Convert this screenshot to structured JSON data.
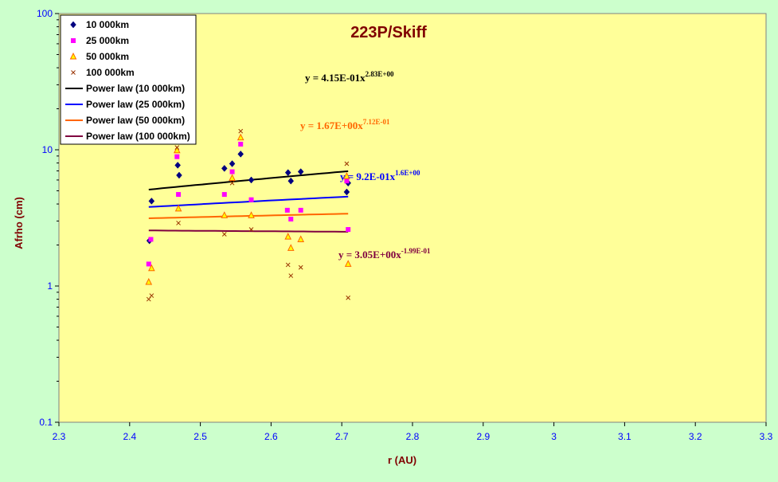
{
  "chart_data": {
    "type": "scatter",
    "title": "223P/Skiff",
    "xlabel": "r (AU)",
    "ylabel": "Afrho (cm)",
    "xlim": [
      2.3,
      3.3
    ],
    "ylim": [
      0.1,
      100
    ],
    "yscale": "log",
    "x_ticks": [
      "2.3",
      "2.4",
      "2.5",
      "2.6",
      "2.7",
      "2.8",
      "2.9",
      "3",
      "3.1",
      "3.2",
      "3.3"
    ],
    "y_ticks": [
      "0.1",
      "1",
      "10",
      "100"
    ],
    "grid": false,
    "legend_position": "top-left",
    "series": [
      {
        "name": "10 000km",
        "marker": "diamond",
        "color": "#000080",
        "points": [
          [
            2.428,
            2.15
          ],
          [
            2.431,
            4.2
          ],
          [
            2.468,
            7.7
          ],
          [
            2.47,
            6.5
          ],
          [
            2.534,
            7.3
          ],
          [
            2.545,
            7.9
          ],
          [
            2.557,
            9.3
          ],
          [
            2.572,
            6.0
          ],
          [
            2.624,
            6.8
          ],
          [
            2.628,
            5.9
          ],
          [
            2.642,
            6.9
          ],
          [
            2.707,
            4.9
          ],
          [
            2.709,
            5.7
          ]
        ]
      },
      {
        "name": "25 000km",
        "marker": "square",
        "color": "#ff00ff",
        "points": [
          [
            2.427,
            1.45
          ],
          [
            2.43,
            2.2
          ],
          [
            2.467,
            8.9
          ],
          [
            2.469,
            4.7
          ],
          [
            2.534,
            4.7
          ],
          [
            2.545,
            6.9
          ],
          [
            2.557,
            11.0
          ],
          [
            2.572,
            4.3
          ],
          [
            2.623,
            3.6
          ],
          [
            2.628,
            3.1
          ],
          [
            2.642,
            3.6
          ],
          [
            2.707,
            5.9
          ],
          [
            2.709,
            2.6
          ]
        ]
      },
      {
        "name": "50 000km",
        "marker": "triangle",
        "color": "#ff6600",
        "points": [
          [
            2.427,
            1.07
          ],
          [
            2.431,
            1.35
          ],
          [
            2.467,
            9.9
          ],
          [
            2.469,
            3.7
          ],
          [
            2.534,
            3.3
          ],
          [
            2.545,
            6.2
          ],
          [
            2.557,
            12.3
          ],
          [
            2.572,
            3.3
          ],
          [
            2.624,
            2.3
          ],
          [
            2.628,
            1.9
          ],
          [
            2.642,
            2.2
          ],
          [
            2.707,
            6.4
          ],
          [
            2.709,
            1.45
          ]
        ]
      },
      {
        "name": "100 000km",
        "marker": "cross",
        "color": "#993300",
        "points": [
          [
            2.427,
            0.8
          ],
          [
            2.431,
            0.85
          ],
          [
            2.467,
            10.4
          ],
          [
            2.469,
            2.9
          ],
          [
            2.534,
            2.4
          ],
          [
            2.545,
            5.7
          ],
          [
            2.557,
            13.7
          ],
          [
            2.572,
            2.6
          ],
          [
            2.624,
            1.43
          ],
          [
            2.628,
            1.19
          ],
          [
            2.642,
            1.37
          ],
          [
            2.707,
            7.9
          ],
          [
            2.709,
            0.82
          ]
        ]
      }
    ],
    "fits": [
      {
        "name": "Power law (10 000km)",
        "color": "#000000",
        "a": 0.415,
        "b": 2.83,
        "x_range": [
          2.427,
          2.709
        ],
        "equation": "y = 4.15E-01x",
        "exponent": "2.83E+00"
      },
      {
        "name": "Power law (25 000km)",
        "color": "#0000ff",
        "a": 0.92,
        "b": 1.6,
        "x_range": [
          2.427,
          2.709
        ],
        "equation": "y = 9.2E-01x",
        "exponent": "1.6E+00"
      },
      {
        "name": "Power law (50 000km)",
        "color": "#ff6600",
        "a": 1.67,
        "b": 0.712,
        "x_range": [
          2.427,
          2.709
        ],
        "equation": "y = 1.67E+00x",
        "exponent": "7.12E-01"
      },
      {
        "name": "Power law (100 000km)",
        "color": "#800040",
        "a": 3.05,
        "b": -0.199,
        "x_range": [
          2.427,
          2.709
        ],
        "equation": "y = 3.05E+00x",
        "exponent": "-1.99E-01"
      }
    ]
  },
  "colors": {
    "background": "#ccffcc",
    "plot_area": "#ffff99",
    "axis_text": "#0000ff",
    "title": "#800000"
  }
}
